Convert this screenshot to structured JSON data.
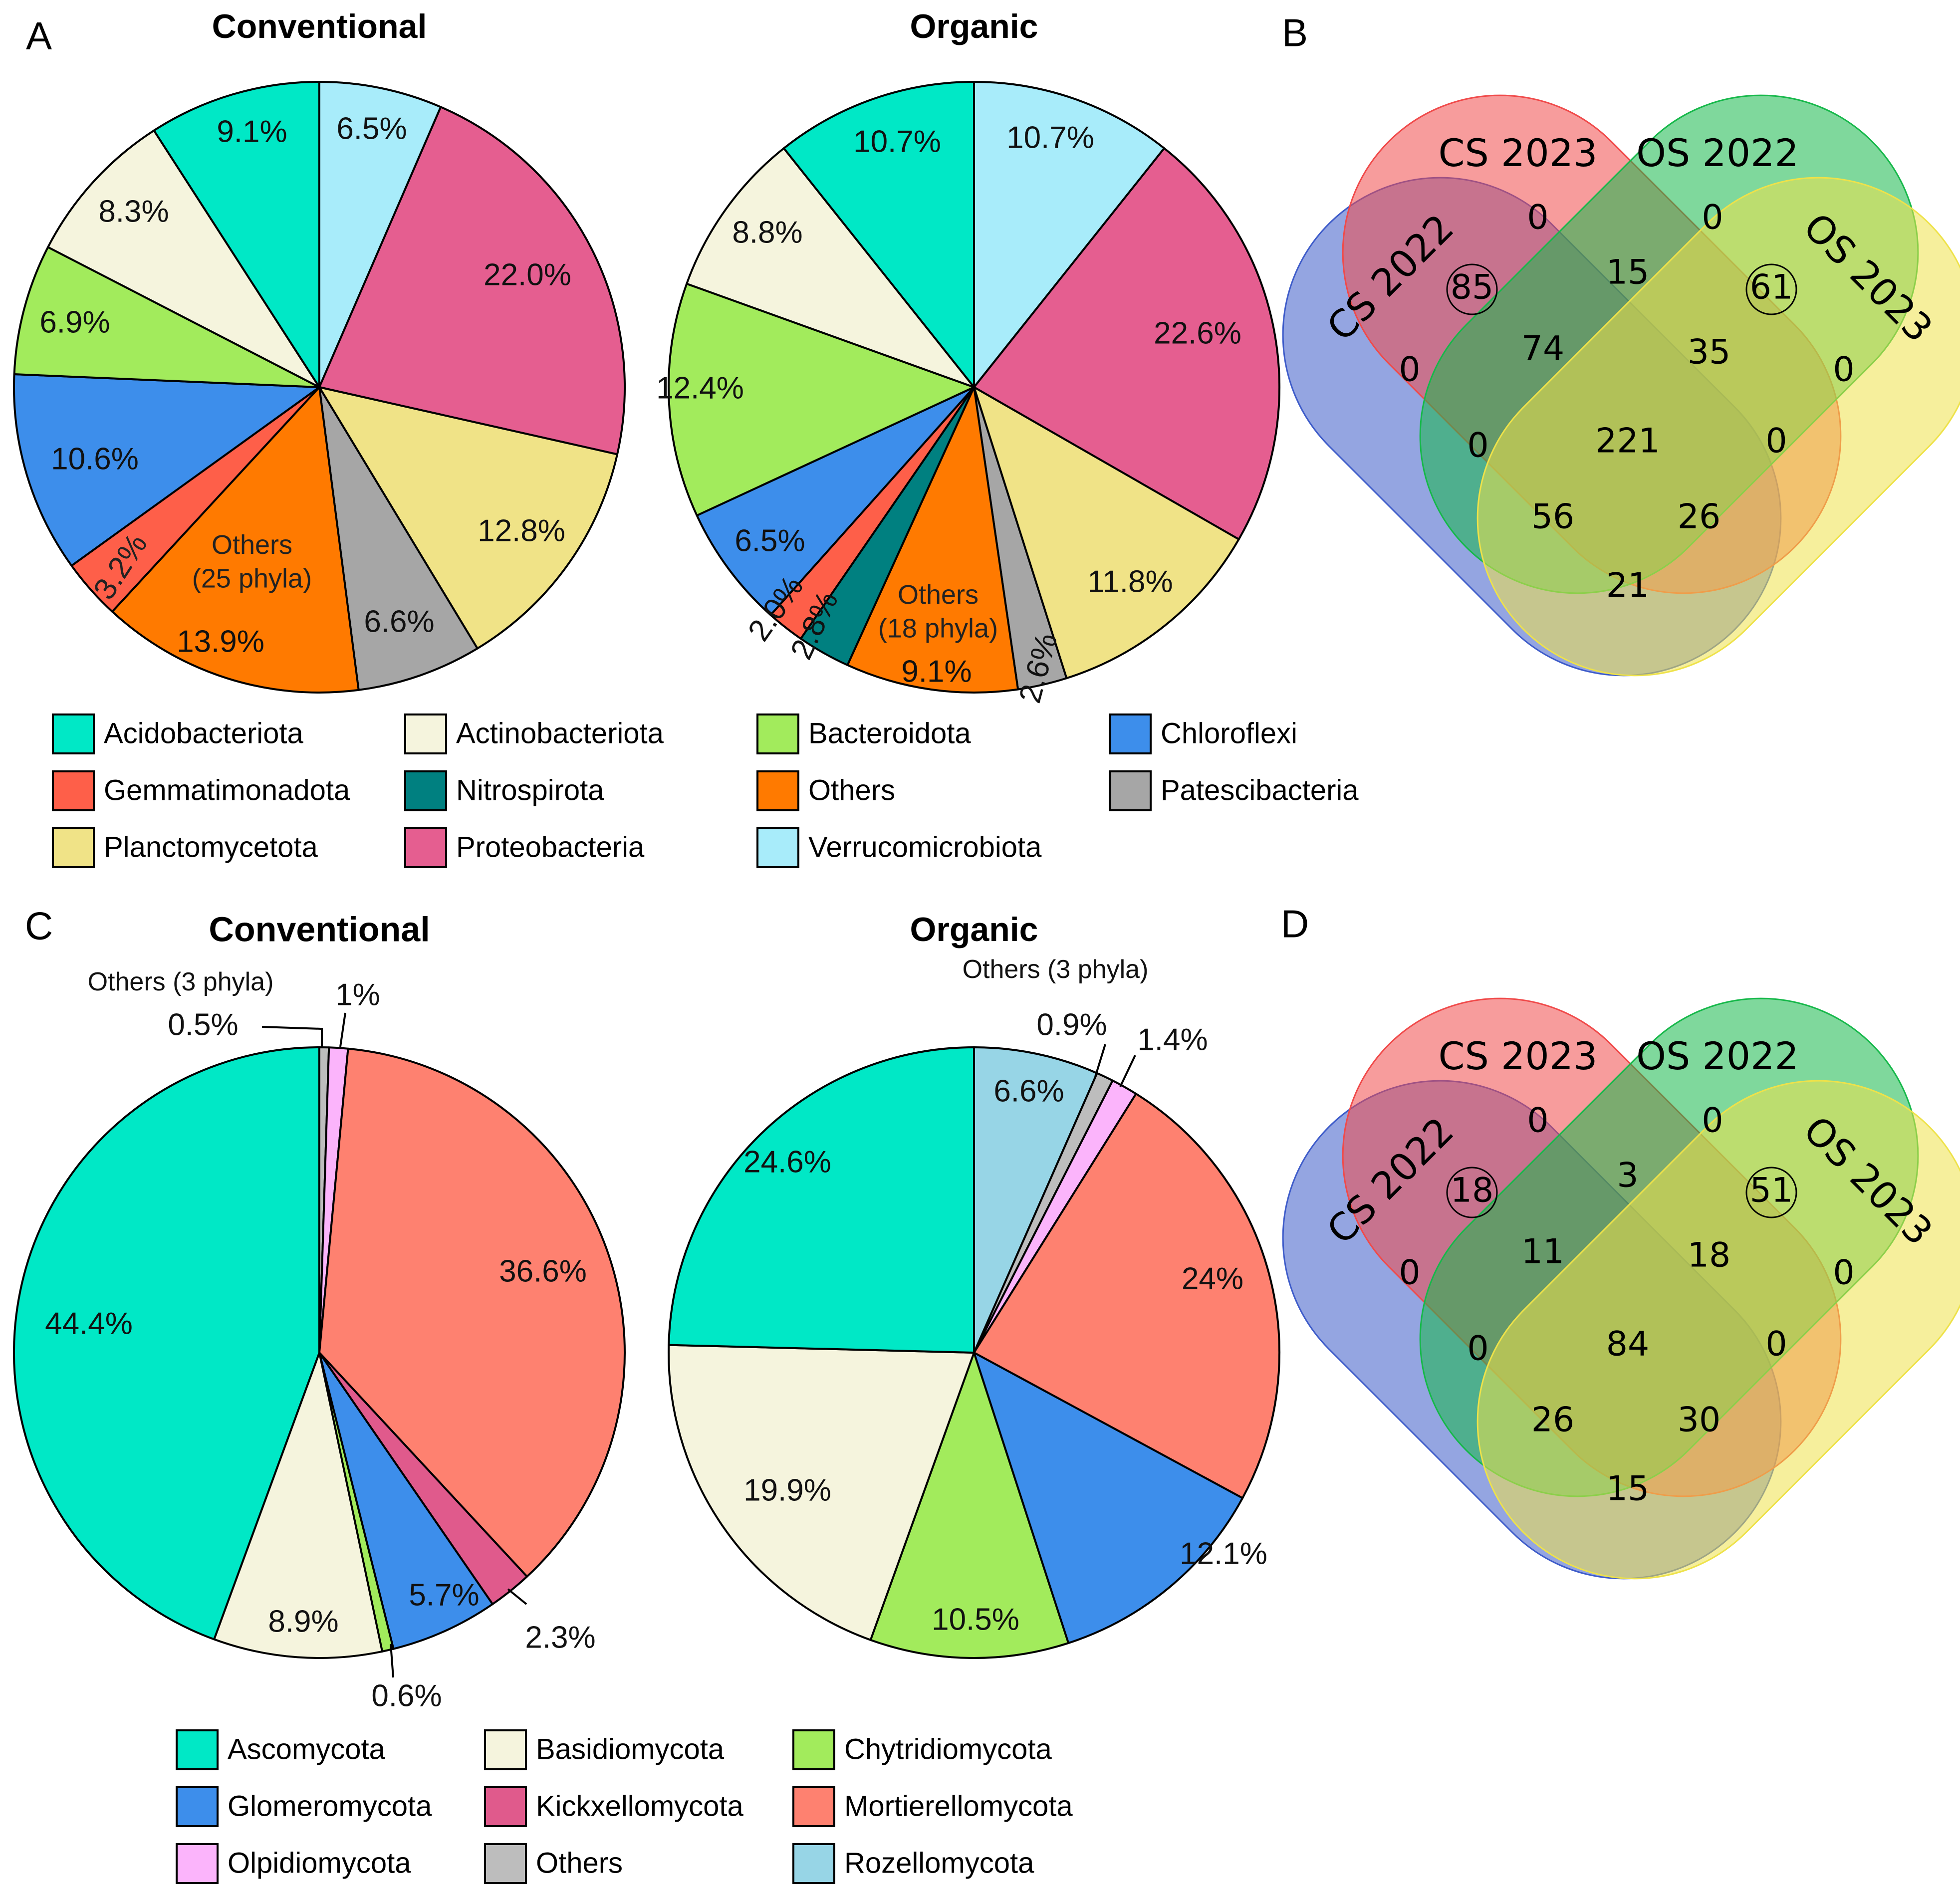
{
  "panel_letters": {
    "a": "A",
    "b": "B",
    "c": "C",
    "d": "D"
  },
  "chart_data": [
    {
      "type": "pie",
      "id": "bact-conv",
      "title": "Conventional",
      "slices": [
        {
          "name": "Verrucomicrobiota",
          "value": 6.5,
          "label": "6.5%",
          "color": "#a8ecfa"
        },
        {
          "name": "Proteobacteria",
          "value": 22.0,
          "label": "22.0%",
          "color": "#e55e90"
        },
        {
          "name": "Planctomycetota",
          "value": 12.8,
          "label": "12.8%",
          "color": "#f0e387"
        },
        {
          "name": "Patescibacteria",
          "value": 6.6,
          "label": "6.6%",
          "color": "#a6a6a6"
        },
        {
          "name": "Others",
          "value": 13.9,
          "label": "13.9%",
          "extra_label": "Others (25 phyla)",
          "color": "#ff7a00"
        },
        {
          "name": "Gemmatimonadota",
          "value": 3.2,
          "label": "3.2%",
          "color": "#fe5f49"
        },
        {
          "name": "Chloroflexi",
          "value": 10.6,
          "label": "10.6%",
          "color": "#3d8eeb"
        },
        {
          "name": "Bacteroidota",
          "value": 6.9,
          "label": "6.9%",
          "color": "#a2eb5c"
        },
        {
          "name": "Actinobacteriota",
          "value": 8.3,
          "label": "8.3%",
          "color": "#f5f4dd"
        },
        {
          "name": "Acidobacteriota",
          "value": 9.1,
          "label": "9.1%",
          "color": "#00e8c6"
        }
      ]
    },
    {
      "type": "pie",
      "id": "bact-org",
      "title": "Organic",
      "slices": [
        {
          "name": "Verrucomicrobiota",
          "value": 10.7,
          "label": "10.7%",
          "color": "#a8ecfa"
        },
        {
          "name": "Proteobacteria",
          "value": 22.6,
          "label": "22.6%",
          "color": "#e55e90"
        },
        {
          "name": "Planctomycetota",
          "value": 11.8,
          "label": "11.8%",
          "color": "#f0e387"
        },
        {
          "name": "Patescibacteria",
          "value": 2.6,
          "label": "2.6%",
          "color": "#a6a6a6"
        },
        {
          "name": "Others",
          "value": 9.1,
          "label": "9.1%",
          "extra_label": "Others (18 phyla)",
          "color": "#ff7a00"
        },
        {
          "name": "Nitrospirota",
          "value": 2.8,
          "label": "2.8%",
          "color": "#008080"
        },
        {
          "name": "Gemmatimonadota",
          "value": 2.0,
          "label": "2.0%",
          "color": "#fe5f49"
        },
        {
          "name": "Chloroflexi",
          "value": 6.5,
          "label": "6.5%",
          "color": "#3d8eeb"
        },
        {
          "name": "Bacteroidota",
          "value": 12.4,
          "label": "12.4%",
          "color": "#a2eb5c"
        },
        {
          "name": "Actinobacteriota",
          "value": 8.8,
          "label": "8.8%",
          "color": "#f5f4dd"
        },
        {
          "name": "Acidobacteriota",
          "value": 10.7,
          "label": "10.7%",
          "color": "#00e8c6"
        }
      ]
    },
    {
      "type": "pie",
      "id": "fung-conv",
      "title": "Conventional",
      "slices": [
        {
          "name": "Others",
          "value": 0.5,
          "label": "0.5%",
          "extra_label": "Others (3 phyla)",
          "color": "#bdbdbd"
        },
        {
          "name": "Olpidiomycota",
          "value": 1.0,
          "label": "1%",
          "color": "#fbb4fb"
        },
        {
          "name": "Mortierellomycota",
          "value": 36.6,
          "label": "36.6%",
          "color": "#fe8170"
        },
        {
          "name": "Kickxellomycota",
          "value": 2.3,
          "label": "2.3%",
          "color": "#e05a8c"
        },
        {
          "name": "Glomeromycota",
          "value": 5.7,
          "label": "5.7%",
          "color": "#3d8eeb"
        },
        {
          "name": "Chytridiomycota",
          "value": 0.6,
          "label": "0.6%",
          "color": "#a2eb5c"
        },
        {
          "name": "Basidiomycota",
          "value": 8.9,
          "label": "8.9%",
          "color": "#f5f4dd"
        },
        {
          "name": "Ascomycota",
          "value": 44.4,
          "label": "44.4%",
          "color": "#00e8c6"
        }
      ]
    },
    {
      "type": "pie",
      "id": "fung-org",
      "title": "Organic",
      "slices": [
        {
          "name": "Rozellomycota",
          "value": 6.6,
          "label": "6.6%",
          "color": "#97d5e6"
        },
        {
          "name": "Others",
          "value": 0.9,
          "label": "0.9%",
          "extra_label": "Others (3 phyla)",
          "color": "#bdbdbd"
        },
        {
          "name": "Olpidiomycota",
          "value": 1.4,
          "label": "1.4%",
          "color": "#fbb4fb"
        },
        {
          "name": "Mortierellomycota",
          "value": 24.0,
          "label": "24%",
          "color": "#fe8170"
        },
        {
          "name": "Glomeromycota",
          "value": 12.1,
          "label": "12.1%",
          "color": "#3d8eeb"
        },
        {
          "name": "Chytridiomycota",
          "value": 10.5,
          "label": "10.5%",
          "color": "#a2eb5c"
        },
        {
          "name": "Basidiomycota",
          "value": 19.9,
          "label": "19.9%",
          "color": "#f5f4dd"
        },
        {
          "name": "Ascomycota",
          "value": 24.6,
          "label": "24.6%",
          "color": "#00e8c6"
        }
      ]
    },
    {
      "type": "venn",
      "id": "venn-bact",
      "sets": [
        "CS 2022",
        "CS 2023",
        "OS 2022",
        "OS 2023"
      ],
      "set_colors": [
        "#3d5bc9",
        "#f04a4a",
        "#16b84a",
        "#eee24a"
      ],
      "regions": {
        "only_cs2022": 0,
        "only_cs2023": 0,
        "only_os2022": 0,
        "only_os2023": 0,
        "cs2022_cs2023": 85,
        "cs2023_os2022": 15,
        "os2022_os2023": 61,
        "cs2022_cs2023_os2022": 74,
        "cs2023_os2022_os2023": 35,
        "all_four": 221,
        "cs2022_os2022": 0,
        "cs2023_os2023": 0,
        "cs2022_os2022_os2023": 56,
        "cs2022_cs2023_os2023": 26,
        "cs2022_os2023": 21
      }
    },
    {
      "type": "venn",
      "id": "venn-fung",
      "sets": [
        "CS 2022",
        "CS 2023",
        "OS 2022",
        "OS 2023"
      ],
      "set_colors": [
        "#3d5bc9",
        "#f04a4a",
        "#16b84a",
        "#eee24a"
      ],
      "regions": {
        "only_cs2022": 0,
        "only_cs2023": 0,
        "only_os2022": 0,
        "only_os2023": 0,
        "cs2022_cs2023": 18,
        "cs2023_os2022": 3,
        "os2022_os2023": 51,
        "cs2022_cs2023_os2022": 11,
        "cs2023_os2022_os2023": 18,
        "all_four": 84,
        "cs2022_os2022": 0,
        "cs2023_os2023": 0,
        "cs2022_os2022_os2023": 26,
        "cs2022_cs2023_os2023": 30,
        "cs2022_os2023": 15
      }
    }
  ],
  "legend_bacteria": [
    {
      "name": "Acidobacteriota",
      "color": "#00e8c6"
    },
    {
      "name": "Actinobacteriota",
      "color": "#f5f4dd"
    },
    {
      "name": "Bacteroidota",
      "color": "#a2eb5c"
    },
    {
      "name": "Chloroflexi",
      "color": "#3d8eeb"
    },
    {
      "name": "Gemmatimonadota",
      "color": "#fe5f49"
    },
    {
      "name": "Nitrospirota",
      "color": "#008080"
    },
    {
      "name": "Others",
      "color": "#ff7a00"
    },
    {
      "name": "Patescibacteria",
      "color": "#a6a6a6"
    },
    {
      "name": "Planctomycetota",
      "color": "#f0e387"
    },
    {
      "name": "Proteobacteria",
      "color": "#e55e90"
    },
    {
      "name": "Verrucomicrobiota",
      "color": "#a8ecfa"
    }
  ],
  "legend_fungi": [
    {
      "name": "Ascomycota",
      "color": "#00e8c6"
    },
    {
      "name": "Basidiomycota",
      "color": "#f5f4dd"
    },
    {
      "name": "Chytridiomycota",
      "color": "#a2eb5c"
    },
    {
      "name": "Glomeromycota",
      "color": "#3d8eeb"
    },
    {
      "name": "Kickxellomycota",
      "color": "#e05a8c"
    },
    {
      "name": "Mortierellomycota",
      "color": "#fe8170"
    },
    {
      "name": "Olpidiomycota",
      "color": "#fbb4fb"
    },
    {
      "name": "Others",
      "color": "#bdbdbd"
    },
    {
      "name": "Rozellomycota",
      "color": "#97d5e6"
    }
  ]
}
